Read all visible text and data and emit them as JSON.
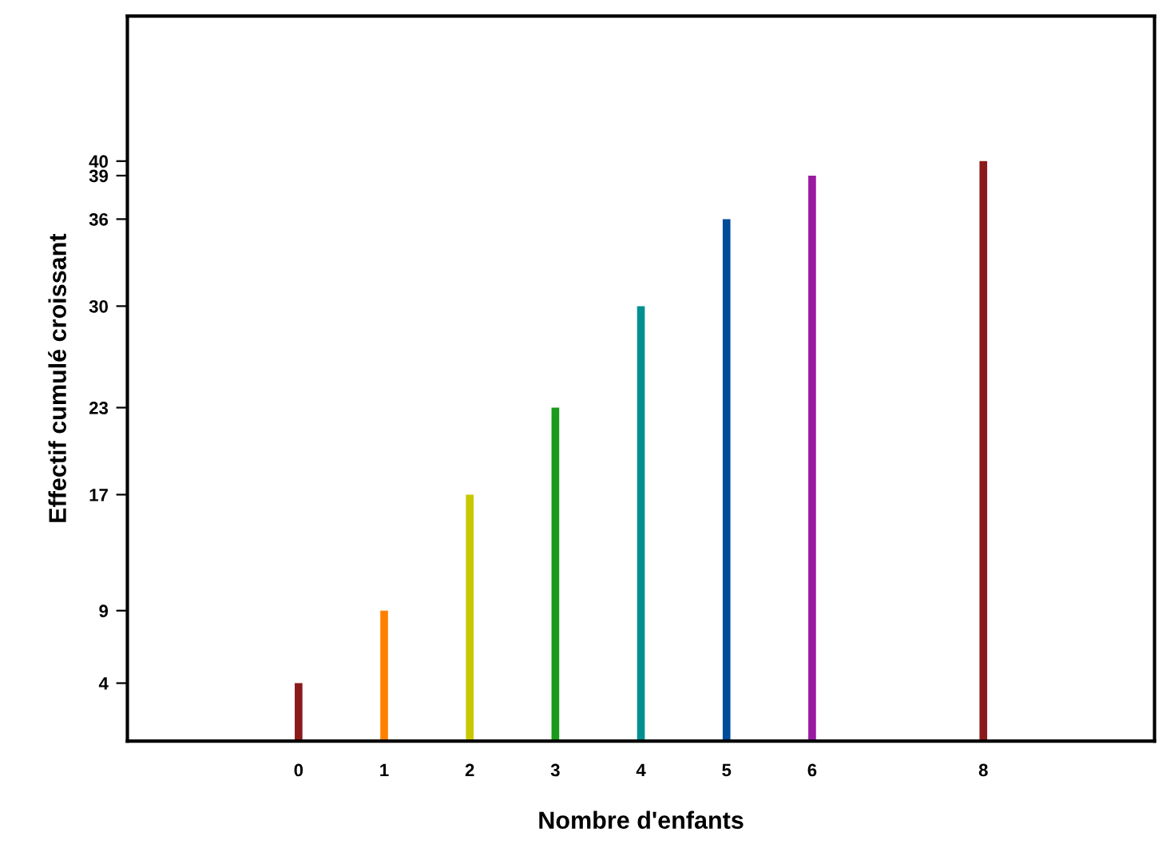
{
  "chart_data": {
    "type": "bar",
    "xlabel": "Nombre d'enfants",
    "ylabel": "Effectif cumulé croissant",
    "x": [
      0,
      1,
      2,
      3,
      4,
      5,
      6,
      8
    ],
    "values": [
      4,
      9,
      17,
      23,
      30,
      36,
      39,
      40
    ],
    "colors": [
      "#8b1a1a",
      "#ff8000",
      "#c8c800",
      "#1a9a1a",
      "#009090",
      "#004a9a",
      "#9a1aa0",
      "#8b1a1a"
    ],
    "xlim": [
      -2,
      10
    ],
    "xticks": [
      0,
      1,
      2,
      3,
      4,
      5,
      6,
      8
    ],
    "ylim": [
      0,
      50
    ],
    "yticks": [
      4,
      9,
      17,
      23,
      30,
      36,
      39,
      40
    ],
    "grid": false
  }
}
